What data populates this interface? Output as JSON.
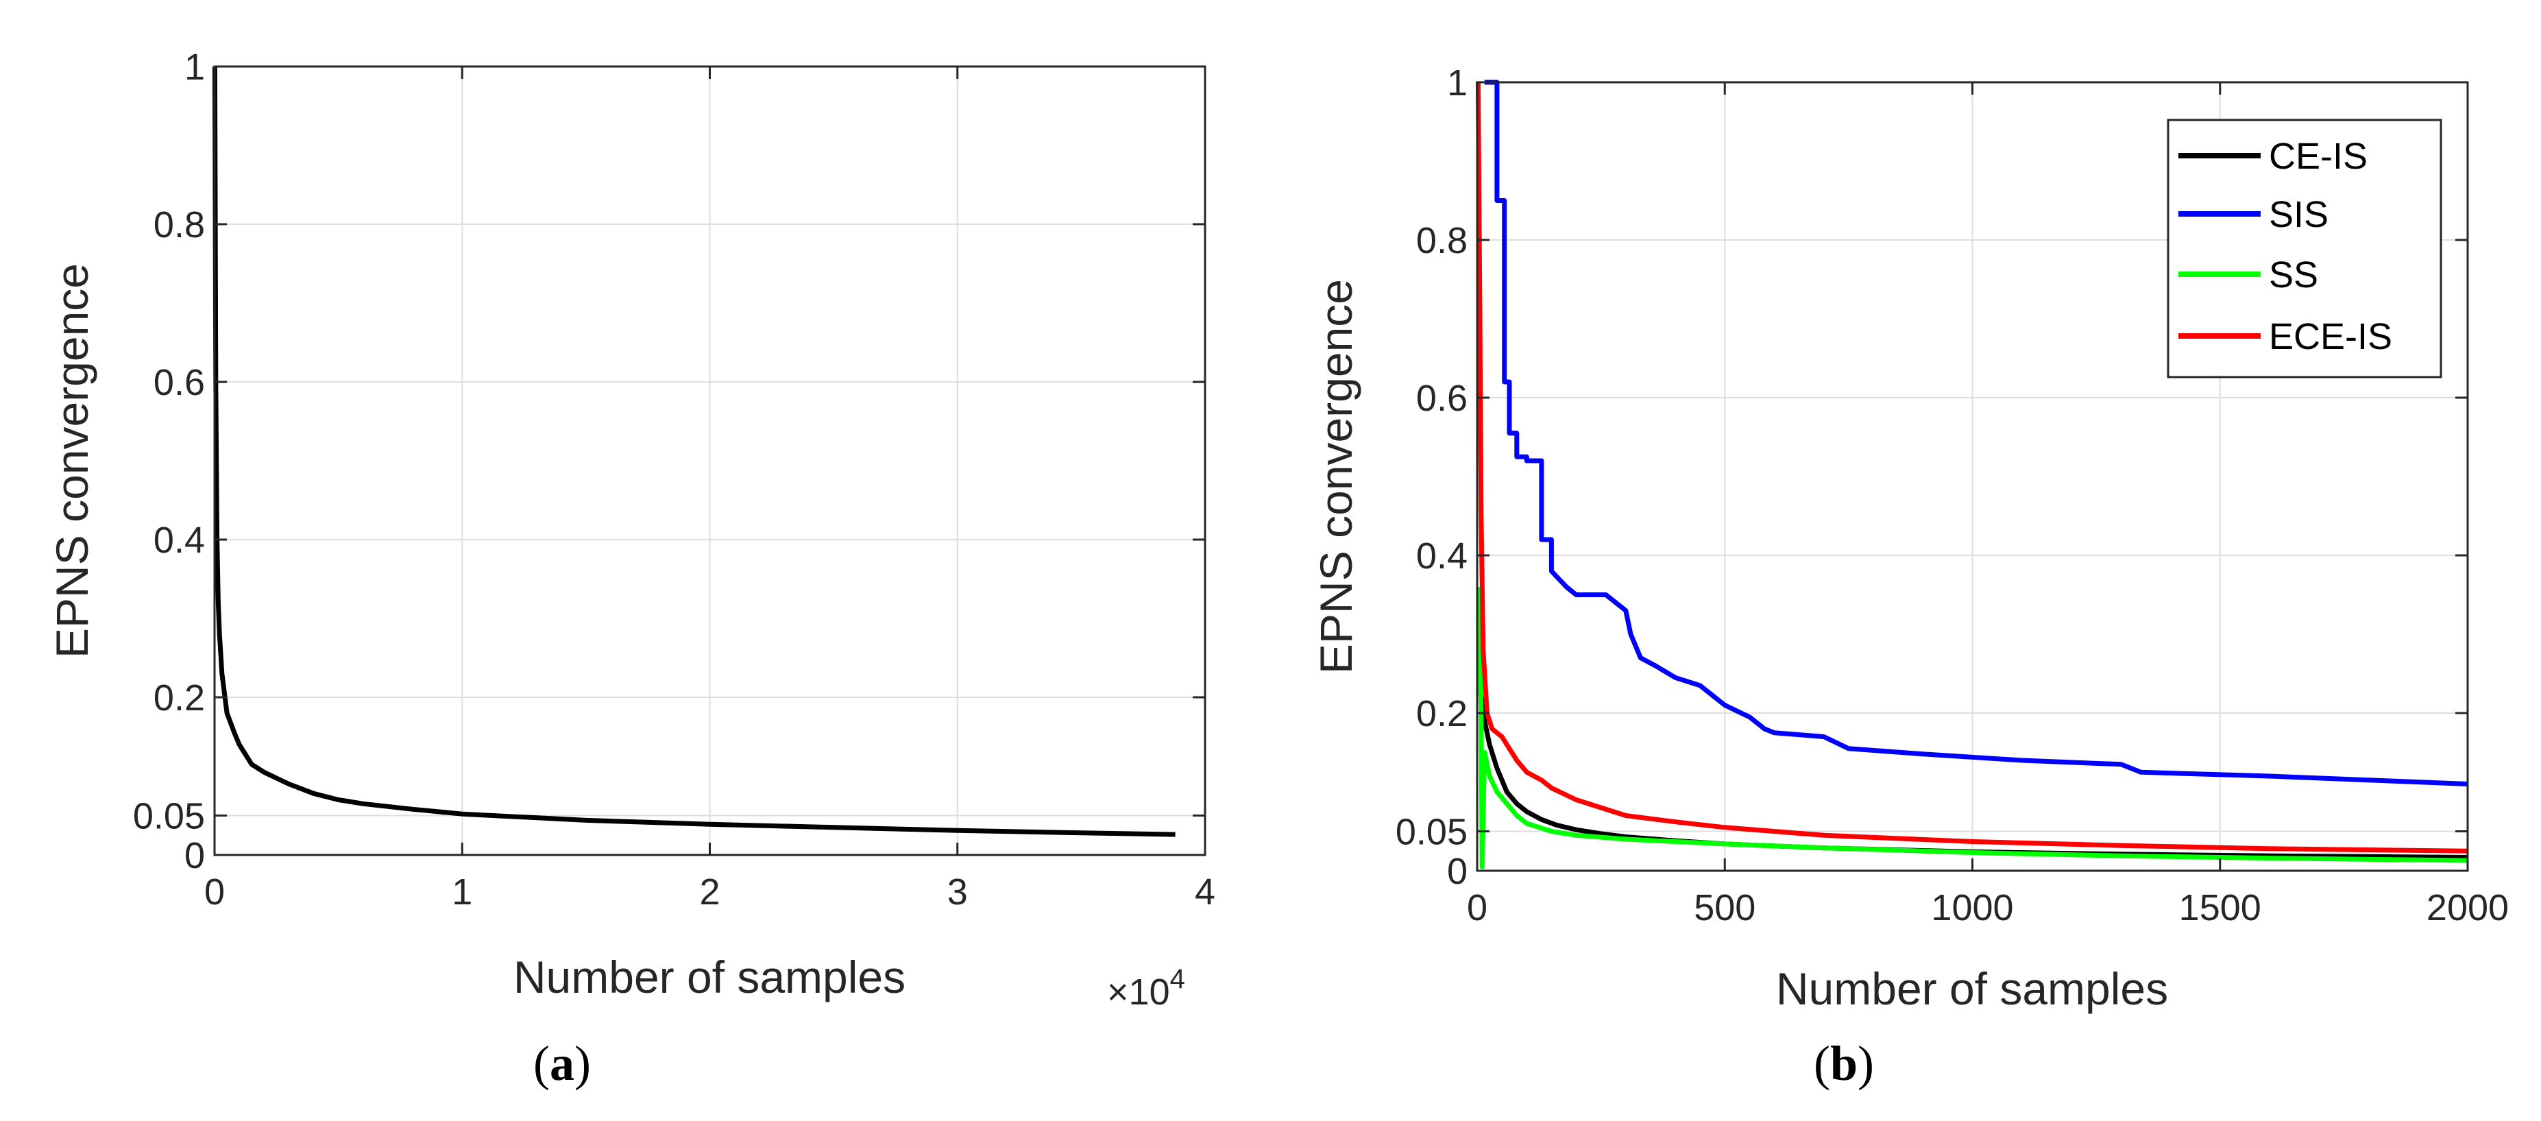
{
  "chart_data": [
    {
      "type": "line",
      "panel_label": {
        "open": "(",
        "letter": "a",
        "close": ")"
      },
      "xlabel": "Number of samples",
      "ylabel": "EPNS convergence",
      "x_exponent": {
        "base": "×10",
        "power": "4"
      },
      "xlim": [
        0,
        40000
      ],
      "ylim": [
        0,
        1
      ],
      "xticks": [
        0,
        10000,
        20000,
        30000,
        40000
      ],
      "xtick_labels": [
        "0",
        "1",
        "2",
        "3",
        "4"
      ],
      "yticks": [
        0,
        0.05,
        0.2,
        0.4,
        0.6,
        0.8,
        1
      ],
      "ytick_labels": [
        "0",
        "0.05",
        "0.2",
        "0.4",
        "0.6",
        "0.8",
        "1"
      ],
      "grid": true,
      "series": [
        {
          "name": "CE-IS",
          "color": "#000000",
          "x": [
            10,
            50,
            100,
            150,
            200,
            300,
            500,
            800,
            1000,
            1500,
            2000,
            3000,
            4000,
            5000,
            6000,
            8000,
            10000,
            15000,
            20000,
            25000,
            30000,
            35000,
            38800
          ],
          "y": [
            1.0,
            0.6,
            0.4,
            0.32,
            0.28,
            0.23,
            0.18,
            0.155,
            0.14,
            0.115,
            0.105,
            0.09,
            0.078,
            0.07,
            0.065,
            0.058,
            0.052,
            0.044,
            0.039,
            0.035,
            0.031,
            0.028,
            0.026
          ]
        }
      ]
    },
    {
      "type": "line",
      "panel_label": {
        "open": "(",
        "letter": "b",
        "close": ")"
      },
      "xlabel": "Number of samples",
      "ylabel": "EPNS convergence",
      "xlim": [
        0,
        2000
      ],
      "ylim": [
        0,
        1
      ],
      "xticks": [
        0,
        500,
        1000,
        1500,
        2000
      ],
      "xtick_labels": [
        "0",
        "500",
        "1000",
        "1500",
        "2000"
      ],
      "yticks": [
        0,
        0.05,
        0.2,
        0.4,
        0.6,
        0.8,
        1
      ],
      "ytick_labels": [
        "0",
        "0.05",
        "0.2",
        "0.4",
        "0.6",
        "0.8",
        "1"
      ],
      "grid": true,
      "legend": "top-right",
      "series": [
        {
          "name": "CE-IS",
          "color": "#000000",
          "x": [
            3,
            8,
            15,
            25,
            40,
            60,
            80,
            100,
            130,
            160,
            200,
            250,
            300,
            400,
            500,
            700,
            1000,
            1300,
            1600,
            2000
          ],
          "y": [
            0.24,
            0.22,
            0.19,
            0.16,
            0.13,
            0.1,
            0.085,
            0.075,
            0.065,
            0.058,
            0.052,
            0.047,
            0.043,
            0.038,
            0.034,
            0.029,
            0.024,
            0.021,
            0.019,
            0.017
          ]
        },
        {
          "name": "SIS",
          "color": "#0000ff",
          "x": [
            15,
            40,
            40,
            55,
            55,
            65,
            65,
            80,
            80,
            100,
            100,
            130,
            130,
            150,
            150,
            180,
            200,
            260,
            300,
            310,
            330,
            360,
            400,
            450,
            480,
            500,
            550,
            580,
            600,
            700,
            750,
            900,
            1100,
            1300,
            1340,
            1600,
            1800,
            2000
          ],
          "y": [
            1.0,
            1.0,
            0.85,
            0.85,
            0.62,
            0.62,
            0.555,
            0.555,
            0.525,
            0.525,
            0.52,
            0.52,
            0.42,
            0.42,
            0.38,
            0.36,
            0.35,
            0.35,
            0.33,
            0.3,
            0.27,
            0.26,
            0.245,
            0.235,
            0.22,
            0.21,
            0.195,
            0.18,
            0.175,
            0.17,
            0.155,
            0.148,
            0.14,
            0.135,
            0.125,
            0.12,
            0.115,
            0.11
          ]
        },
        {
          "name": "SS",
          "color": "#00ff00",
          "x": [
            3,
            8,
            10,
            15,
            25,
            40,
            60,
            80,
            100,
            150,
            200,
            300,
            500,
            700,
            1000,
            1300,
            1600,
            2000
          ],
          "y": [
            0.36,
            0.2,
            0.005,
            0.15,
            0.12,
            0.1,
            0.085,
            0.07,
            0.06,
            0.05,
            0.045,
            0.04,
            0.034,
            0.029,
            0.023,
            0.019,
            0.016,
            0.013
          ]
        },
        {
          "name": "ECE-IS",
          "color": "#ff0000",
          "x": [
            2,
            5,
            8,
            12,
            20,
            30,
            40,
            50,
            60,
            80,
            100,
            130,
            150,
            200,
            250,
            300,
            400,
            500,
            700,
            1000,
            1300,
            1600,
            2000
          ],
          "y": [
            1.0,
            0.75,
            0.45,
            0.28,
            0.2,
            0.18,
            0.175,
            0.17,
            0.16,
            0.14,
            0.125,
            0.115,
            0.105,
            0.09,
            0.08,
            0.07,
            0.062,
            0.055,
            0.045,
            0.037,
            0.032,
            0.028,
            0.025
          ]
        }
      ]
    }
  ]
}
